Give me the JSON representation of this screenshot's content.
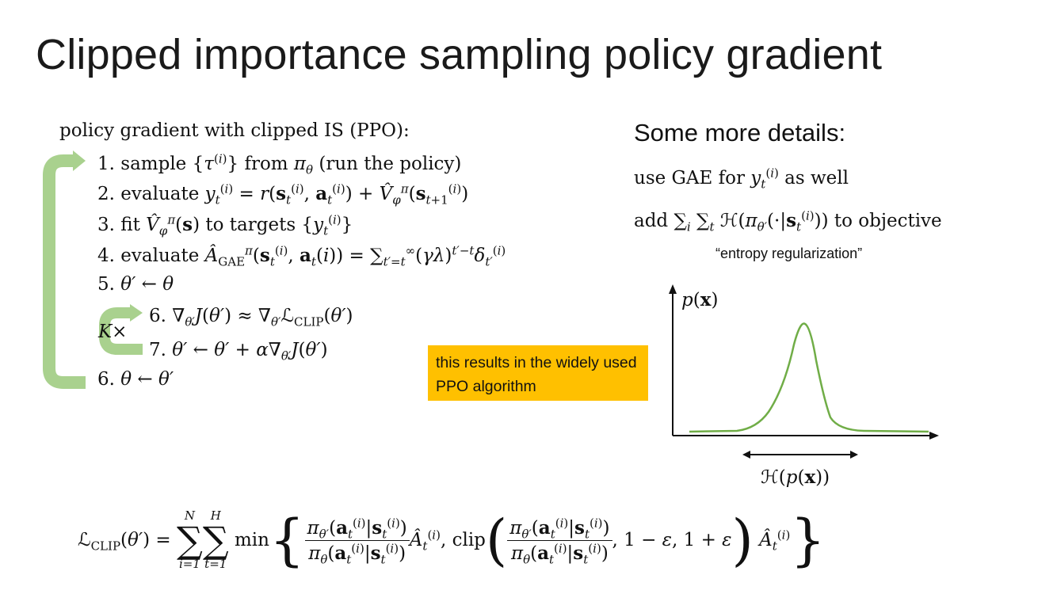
{
  "slide": {
    "title": "Clipped importance sampling policy gradient"
  },
  "left": {
    "header": "policy gradient with clipped IS (PPO):",
    "steps": [
      {
        "num": "1.",
        "text": "sample {τ(i)} from πθ (run the policy)"
      },
      {
        "num": "2.",
        "text": "evaluate yt(i) = r(st(i), at(i)) + V̂φπ(st+1(i))"
      },
      {
        "num": "3.",
        "text": "fit V̂φπ(s) to targets {yt(i)}"
      },
      {
        "num": "4.",
        "text": "evaluate ÂGAEπ(st(i), at(i)) = Σt′=t∞ (γλ)t′−t δt′(i)"
      },
      {
        "num": "5.",
        "text": "θ′ ← θ"
      },
      {
        "num": "6.",
        "text": "∇θ′J(θ′) ≈ ∇θ′ℒCLIP(θ′)"
      },
      {
        "num": "7.",
        "text": "θ′ ← θ′ + α∇θ′J(θ′)"
      },
      {
        "num": "6.",
        "text": "θ ← θ′"
      }
    ],
    "inner_loop_label": "K×"
  },
  "right": {
    "heading": "Some more details:",
    "line1": "use GAE for yt(i) as well",
    "line2": "add Σi Σt ℋ(πθ′(·|st(i))) to objective",
    "quote": "“entropy regularization”"
  },
  "callout": {
    "text": "this results in the widely used PPO algorithm",
    "color": "#ffc000"
  },
  "plot": {
    "ylabel": "p(x)",
    "xlabel": "ℋ(p(x))",
    "curve_color": "#70ad47"
  },
  "objective": {
    "formula": "ℒCLIP(θ′) = Σi=1N Σt=1H min{ πθ′(at(i)|st(i)) / πθ(at(i)|st(i)) Ât(i), clip( πθ′(at(i)|st(i)) / πθ(at(i)|st(i)), 1−ε, 1+ε ) Ât(i) }",
    "sum1_upper": "N",
    "sum1_lower": "i=1",
    "sum2_upper": "H",
    "sum2_lower": "t=1"
  },
  "colors": {
    "loop_arrow": "#a9d18e",
    "loop_arrow_stroke": "#70ad47"
  }
}
